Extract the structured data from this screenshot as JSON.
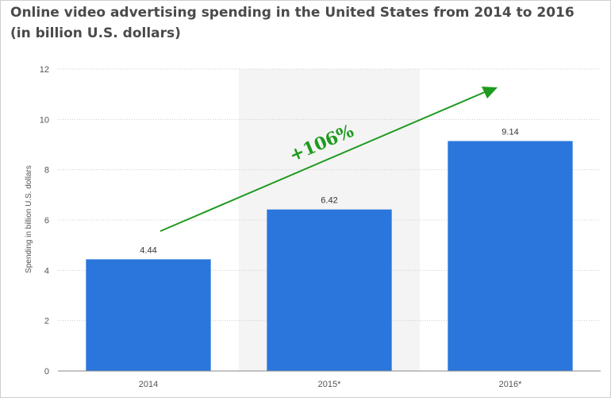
{
  "chart_data": {
    "type": "bar",
    "title": "Online video advertising spending in the United States from 2014 to 2016 (in billion U.S. dollars)",
    "ylabel": "Spending in billion U.S. dollars",
    "xlabel": "",
    "categories": [
      "2014",
      "2015*",
      "2016*"
    ],
    "values": [
      4.44,
      6.42,
      9.14
    ],
    "data_labels": [
      "4.44",
      "6.42",
      "9.14"
    ],
    "ylim": [
      0,
      12
    ],
    "yticks": [
      0,
      2,
      4,
      6,
      8,
      10,
      12
    ],
    "grid": true,
    "highlighted_category": "2015*",
    "annotation": "+106%",
    "colors": {
      "bar": "#2a76dd",
      "annotation": "#1e9a1e",
      "highlight_band": "#f4f4f4",
      "grid": "#cccccc"
    }
  }
}
